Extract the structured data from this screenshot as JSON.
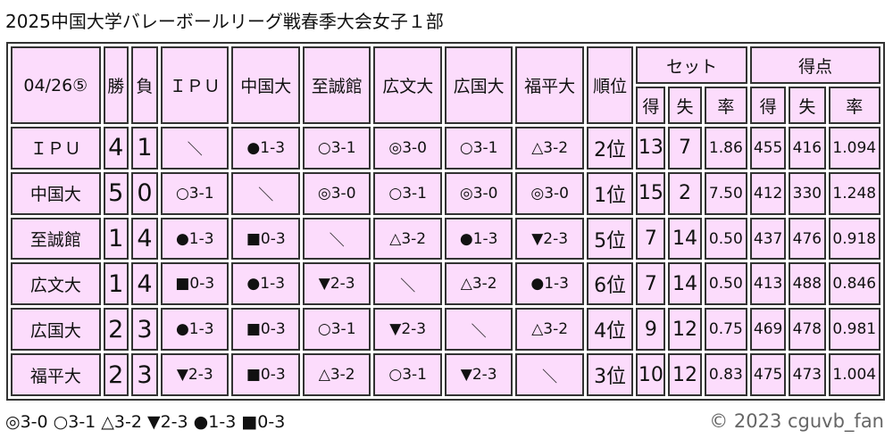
{
  "title": "2025中国大学バレーボールリーグ戦春季大会女子１部",
  "header": {
    "date": "04/26⑤",
    "wins": "勝",
    "losses": "負",
    "teams": [
      "ＩＰＵ",
      "中国大",
      "至誠館",
      "広文大",
      "広国大",
      "福平大"
    ],
    "rank": "順位",
    "sets": "セット",
    "points": "得点",
    "won": "得",
    "lost": "失",
    "ratio": "率"
  },
  "rows": [
    {
      "team": "ＩＰＵ",
      "w": "4",
      "l": "1",
      "results": [
        "＼",
        "●1-3",
        "○3-1",
        "◎3-0",
        "○3-1",
        "△3-2"
      ],
      "rank": "2位",
      "sw": "13",
      "sl": "7",
      "sr": "1.86",
      "pw": "455",
      "pl": "416",
      "pr": "1.094"
    },
    {
      "team": "中国大",
      "w": "5",
      "l": "0",
      "results": [
        "○3-1",
        "＼",
        "◎3-0",
        "○3-1",
        "◎3-0",
        "◎3-0"
      ],
      "rank": "1位",
      "sw": "15",
      "sl": "2",
      "sr": "7.50",
      "pw": "412",
      "pl": "330",
      "pr": "1.248"
    },
    {
      "team": "至誠館",
      "w": "1",
      "l": "4",
      "results": [
        "●1-3",
        "■0-3",
        "＼",
        "△3-2",
        "●1-3",
        "▼2-3"
      ],
      "rank": "5位",
      "sw": "7",
      "sl": "14",
      "sr": "0.50",
      "pw": "437",
      "pl": "476",
      "pr": "0.918"
    },
    {
      "team": "広文大",
      "w": "1",
      "l": "4",
      "results": [
        "■0-3",
        "●1-3",
        "▼2-3",
        "＼",
        "△3-2",
        "●1-3"
      ],
      "rank": "6位",
      "sw": "7",
      "sl": "14",
      "sr": "0.50",
      "pw": "413",
      "pl": "488",
      "pr": "0.846"
    },
    {
      "team": "広国大",
      "w": "2",
      "l": "3",
      "results": [
        "●1-3",
        "■0-3",
        "○3-1",
        "▼2-3",
        "＼",
        "△3-2"
      ],
      "rank": "4位",
      "sw": "9",
      "sl": "12",
      "sr": "0.75",
      "pw": "469",
      "pl": "478",
      "pr": "0.981"
    },
    {
      "team": "福平大",
      "w": "2",
      "l": "3",
      "results": [
        "▼2-3",
        "■0-3",
        "△3-2",
        "○3-1",
        "▼2-3",
        "＼"
      ],
      "rank": "3位",
      "sw": "10",
      "sl": "12",
      "sr": "0.83",
      "pw": "475",
      "pl": "473",
      "pr": "1.004"
    }
  ],
  "legend": "◎3-0 ○3-1 △3-2 ▼2-3 ●1-3 ■0-3",
  "copyright": "© 2023 cguvb_fan",
  "colors": {
    "cell": "#fcdcfc",
    "border": "#333333"
  }
}
